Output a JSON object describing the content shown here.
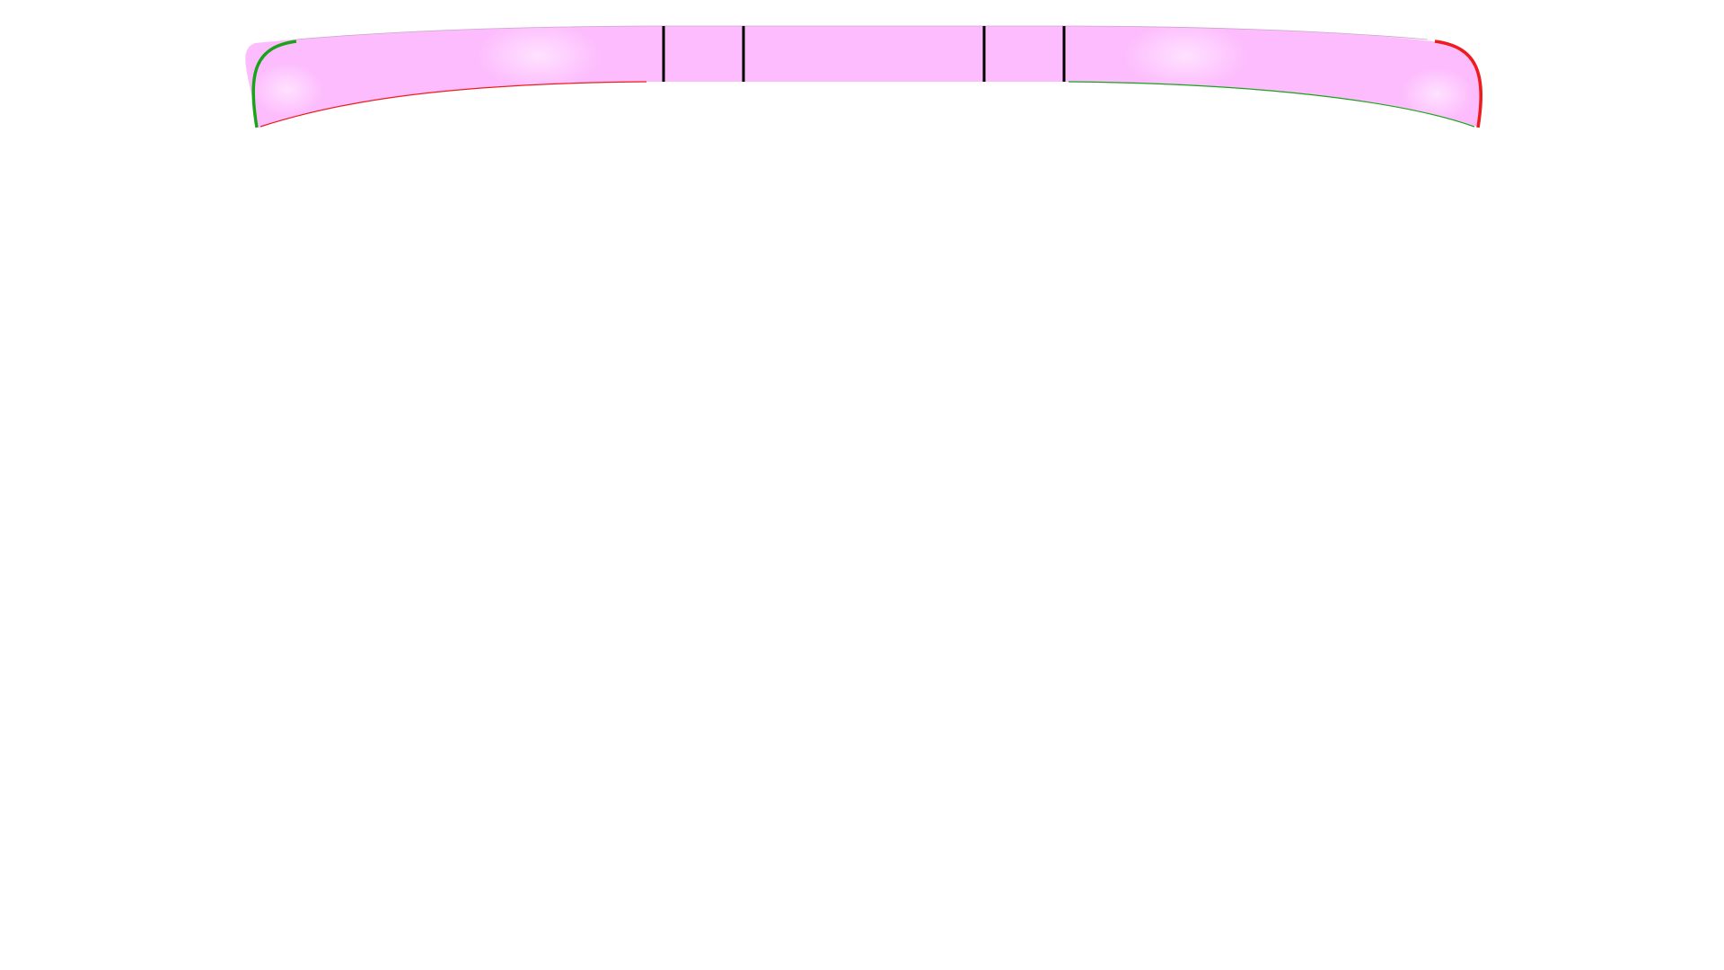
{
  "diagram": {
    "colors": {
      "background": "#ffffff",
      "band_fill": "#fdbcfd",
      "band_highlight": "#ffe2ff",
      "divider": "#000000",
      "edge_green": "#1aa31a",
      "edge_red": "#ee1c1c"
    },
    "band": {
      "shape": "curved-band",
      "divider_count": 4
    },
    "edges": {
      "left_outer": "edge_green",
      "left_inner_bottom": "edge_red",
      "right_outer": "edge_red",
      "right_inner_bottom": "edge_green"
    }
  }
}
